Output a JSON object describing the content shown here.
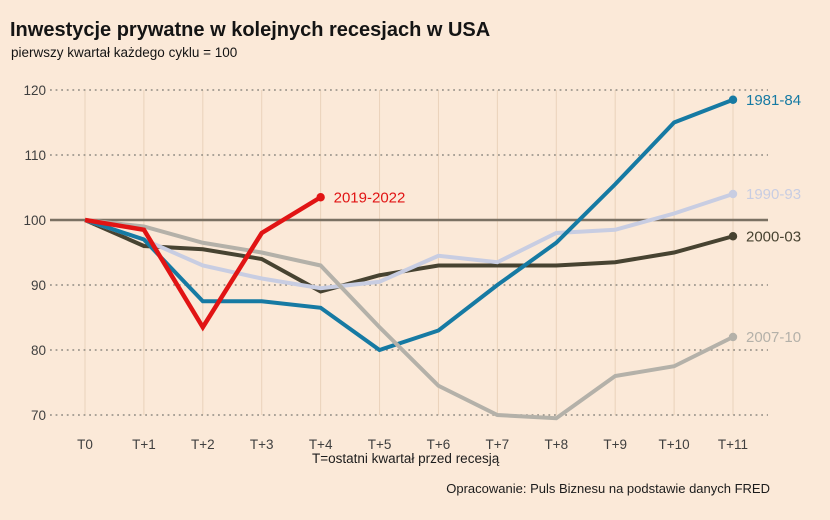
{
  "title": "Inwestycje prywatne w kolejnych recesjach w USA",
  "subtitle": "pierwszy kwartał każdego cyklu = 100",
  "axis_caption": "T=ostatni kwartał przed recesją",
  "source": "Opracowanie: Puls Biznesu na podstawie danych FRED",
  "colors": {
    "background": "#fbe9d8",
    "baseline": "#7a7163",
    "grid_dotted": "#8f8b82",
    "vgrid": "rgba(190,150,110,0.28)",
    "axis_text": "#3f3f3f",
    "title_text": "#141414",
    "caption_text": "#1c1c1c"
  },
  "chart_data": {
    "type": "line",
    "title": "Inwestycje prywatne w kolejnych recesjach w USA",
    "subtitle": "pierwszy kwartał każdego cyklu = 100",
    "xlabel": "T=ostatni kwartał przed recesją",
    "ylabel": "",
    "categories": [
      "T0",
      "T+1",
      "T+2",
      "T+3",
      "T+4",
      "T+5",
      "T+6",
      "T+7",
      "T+8",
      "T+9",
      "T+10",
      "T+11"
    ],
    "ylim": [
      70,
      120
    ],
    "yticks": [
      70,
      80,
      90,
      100,
      110,
      120
    ],
    "baseline": 100,
    "grid": "horizontal-dotted, faint-vertical",
    "legend_position": "labels-at-line-ends",
    "series": [
      {
        "name": "1981-84",
        "color": "#167aa3",
        "width": 4,
        "values": [
          100,
          97,
          87.5,
          87.5,
          86.5,
          80,
          83,
          90,
          96.5,
          105.5,
          115,
          118.5
        ]
      },
      {
        "name": "1990-93",
        "color": "#c8cde2",
        "width": 4,
        "values": [
          100,
          97,
          93,
          91,
          89.5,
          90.5,
          94.5,
          93.5,
          98,
          98.5,
          101,
          104
        ]
      },
      {
        "name": "2000-03",
        "color": "#474331",
        "width": 4,
        "values": [
          100,
          96,
          95.5,
          94,
          89,
          91.5,
          93,
          93,
          93,
          93.5,
          95,
          97.5
        ]
      },
      {
        "name": "2007-10",
        "color": "#b4b1a9",
        "width": 4,
        "values": [
          100,
          99,
          96.5,
          95,
          93,
          83.5,
          74.5,
          70,
          69.5,
          76,
          77.5,
          82
        ]
      },
      {
        "name": "2019-2022",
        "color": "#e11414",
        "width": 4.5,
        "values": [
          100,
          98.5,
          83.5,
          98,
          103.5
        ]
      }
    ],
    "draw_order": [
      "2000-03",
      "1990-93",
      "1981-84",
      "2007-10",
      "2019-2022"
    ]
  }
}
